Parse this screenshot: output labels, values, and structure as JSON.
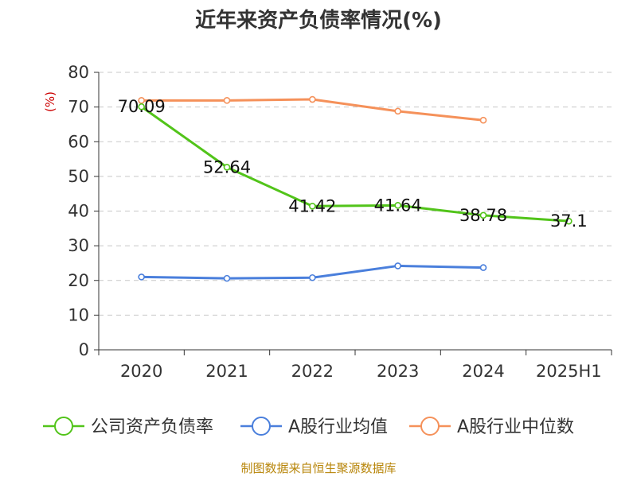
{
  "chart_data": {
    "type": "line",
    "title": "近年来资产负债率情况(%)",
    "ylabel": "(%)",
    "xlabel": "",
    "categories": [
      "2020",
      "2021",
      "2022",
      "2023",
      "2024",
      "2025H1"
    ],
    "ylim": [
      0,
      80
    ],
    "yticks": [
      0,
      10,
      20,
      30,
      40,
      50,
      60,
      70,
      80
    ],
    "grid": true,
    "legend_position": "bottom",
    "series": [
      {
        "name": "公司资产负债率",
        "color": "#52c41a",
        "values": [
          70.09,
          52.64,
          41.42,
          41.64,
          38.78,
          37.1
        ],
        "labels": [
          "70.09",
          "52.64",
          "41.42",
          "41.64",
          "38.78",
          "37.1"
        ]
      },
      {
        "name": "A股行业均值",
        "color": "#4a7fdc",
        "values": [
          21.0,
          20.6,
          20.8,
          24.2,
          23.7,
          null
        ]
      },
      {
        "name": "A股行业中位数",
        "color": "#f5915a",
        "values": [
          71.9,
          71.9,
          72.2,
          68.8,
          66.2,
          null
        ]
      }
    ],
    "source": "制图数据来自恒生聚源数据库"
  }
}
